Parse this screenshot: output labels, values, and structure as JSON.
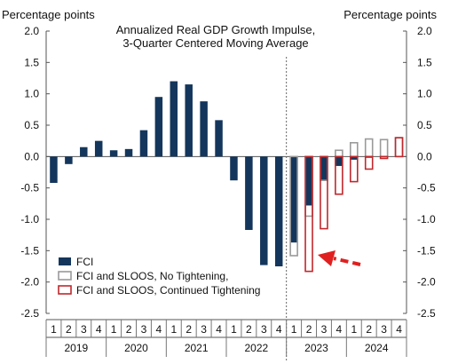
{
  "chart_data": {
    "type": "bar",
    "title": "Annualized Real GDP Growth Impulse,",
    "subtitle": "3-Quarter Centered Moving Average",
    "ylabel_left": "Percentage points",
    "ylabel_right": "Percentage points",
    "ylim": [
      -2.5,
      2.0
    ],
    "yticks": [
      "2.0",
      "1.5",
      "1.0",
      "0.5",
      "0.0",
      "-0.5",
      "-1.0",
      "-1.5",
      "-2.0",
      "-2.5"
    ],
    "quarters": [
      "1",
      "2",
      "3",
      "4",
      "1",
      "2",
      "3",
      "4",
      "1",
      "2",
      "3",
      "4",
      "1",
      "2",
      "3",
      "4",
      "1",
      "2",
      "3",
      "4",
      "1",
      "2",
      "3",
      "4"
    ],
    "years": [
      "2019",
      "2020",
      "2021",
      "2022",
      "2023",
      "2024"
    ],
    "legend": [
      {
        "label": "FCI",
        "style": "solid",
        "color": "#14365c"
      },
      {
        "label": "FCI and SLOOS, No Tightening,",
        "style": "outline",
        "color": "#9a9a9a"
      },
      {
        "label": "FCI and SLOOS, Continued Tightening",
        "style": "outline",
        "color": "#c0282c"
      }
    ],
    "series": [
      {
        "name": "FCI",
        "values": [
          -0.42,
          -0.12,
          0.15,
          0.25,
          0.1,
          0.12,
          0.42,
          0.95,
          1.2,
          1.15,
          0.88,
          0.58,
          -0.38,
          -1.17,
          -1.73,
          -1.75,
          -1.37,
          -0.78,
          -0.38,
          -0.15,
          -0.05,
          -0.02,
          null,
          null
        ]
      },
      {
        "name": "FCI and SLOOS, No Tightening,",
        "values": [
          null,
          null,
          null,
          null,
          null,
          null,
          null,
          null,
          null,
          null,
          null,
          null,
          null,
          null,
          null,
          null,
          -1.58,
          -0.95,
          -0.38,
          0.1,
          0.22,
          0.28,
          0.27,
          0.3
        ]
      },
      {
        "name": "FCI and SLOOS, Continued Tightening",
        "values": [
          null,
          null,
          null,
          null,
          null,
          null,
          null,
          null,
          null,
          null,
          null,
          null,
          null,
          null,
          null,
          null,
          null,
          -1.83,
          -1.15,
          -0.6,
          -0.4,
          -0.2,
          -0.03,
          0.3
        ]
      }
    ],
    "forecast_divider_after_index": 15,
    "arrow_color": "#e02020",
    "grid": false
  }
}
